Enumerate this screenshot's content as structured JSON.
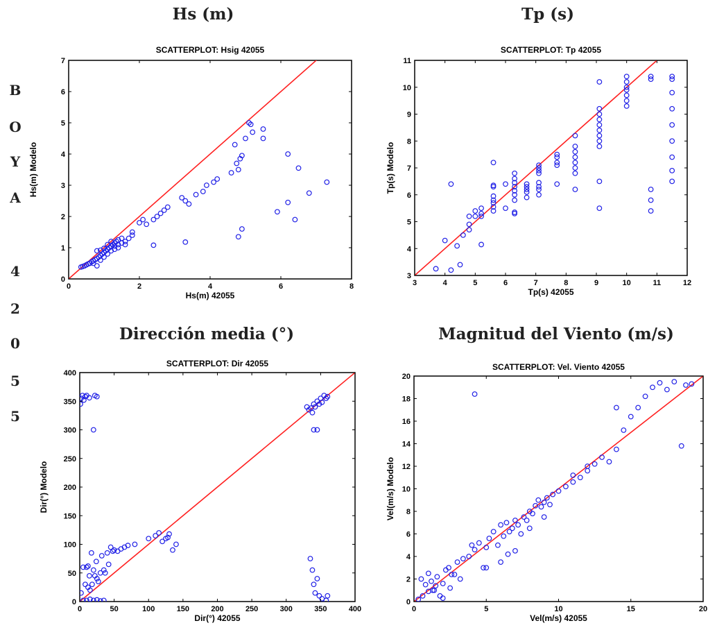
{
  "side_label": [
    "B",
    "O",
    "Y",
    "A",
    "",
    "4",
    "2",
    "0",
    "5",
    "5"
  ],
  "colors": {
    "points": "#1f1fe6",
    "fit_line": "#ff2020",
    "axes": "#000000"
  },
  "chart_data": [
    {
      "type": "scatter",
      "section_title": "Hs (m)",
      "title": "SCATTERPLOT: Hsig 42055",
      "xlabel": "Hs(m) 42055",
      "ylabel": "Hs(m) Modelo",
      "xlim": [
        0,
        8
      ],
      "ylim": [
        0,
        7
      ],
      "xticks": [
        0,
        2,
        4,
        6,
        8
      ],
      "yticks": [
        0,
        1,
        2,
        3,
        4,
        5,
        6,
        7
      ],
      "grid": false,
      "reference_line": [
        [
          0,
          0
        ],
        [
          8,
          8
        ]
      ],
      "points": [
        [
          0.35,
          0.38
        ],
        [
          0.4,
          0.4
        ],
        [
          0.45,
          0.42
        ],
        [
          0.5,
          0.45
        ],
        [
          0.55,
          0.48
        ],
        [
          0.6,
          0.5
        ],
        [
          0.65,
          0.55
        ],
        [
          0.7,
          0.58
        ],
        [
          0.75,
          0.62
        ],
        [
          0.8,
          0.65
        ],
        [
          0.85,
          0.7
        ],
        [
          0.9,
          0.75
        ],
        [
          0.95,
          0.8
        ],
        [
          1.0,
          0.85
        ],
        [
          1.05,
          0.9
        ],
        [
          1.1,
          0.95
        ],
        [
          1.15,
          1.0
        ],
        [
          1.2,
          1.05
        ],
        [
          1.25,
          1.1
        ],
        [
          1.3,
          1.15
        ],
        [
          1.35,
          1.2
        ],
        [
          1.4,
          1.25
        ],
        [
          1.5,
          1.3
        ],
        [
          0.8,
          0.9
        ],
        [
          0.9,
          0.92
        ],
        [
          1.0,
          0.98
        ],
        [
          1.1,
          1.1
        ],
        [
          1.2,
          1.2
        ],
        [
          1.3,
          1.05
        ],
        [
          1.4,
          1.1
        ],
        [
          1.5,
          1.15
        ],
        [
          1.6,
          1.2
        ],
        [
          1.7,
          1.3
        ],
        [
          1.8,
          1.5
        ],
        [
          2.0,
          1.8
        ],
        [
          2.1,
          1.9
        ],
        [
          2.2,
          1.75
        ],
        [
          2.4,
          1.9
        ],
        [
          2.5,
          2.0
        ],
        [
          2.6,
          2.1
        ],
        [
          2.7,
          2.2
        ],
        [
          2.8,
          2.3
        ],
        [
          0.7,
          0.5
        ],
        [
          0.8,
          0.42
        ],
        [
          0.9,
          0.6
        ],
        [
          1.0,
          0.7
        ],
        [
          1.1,
          0.8
        ],
        [
          1.2,
          0.9
        ],
        [
          1.3,
          0.95
        ],
        [
          1.4,
          1.0
        ],
        [
          1.6,
          1.1
        ],
        [
          1.8,
          1.4
        ],
        [
          2.4,
          1.08
        ],
        [
          3.2,
          2.6
        ],
        [
          3.3,
          2.5
        ],
        [
          3.4,
          2.4
        ],
        [
          3.6,
          2.7
        ],
        [
          3.8,
          2.8
        ],
        [
          3.9,
          3.0
        ],
        [
          4.1,
          3.1
        ],
        [
          4.2,
          3.2
        ],
        [
          4.6,
          3.4
        ],
        [
          4.7,
          4.3
        ],
        [
          4.75,
          3.7
        ],
        [
          4.8,
          3.5
        ],
        [
          4.85,
          3.85
        ],
        [
          4.9,
          3.95
        ],
        [
          5.0,
          4.5
        ],
        [
          5.1,
          5.0
        ],
        [
          5.15,
          4.95
        ],
        [
          5.2,
          4.7
        ],
        [
          5.5,
          4.8
        ],
        [
          5.5,
          4.5
        ],
        [
          4.8,
          1.35
        ],
        [
          4.9,
          1.6
        ],
        [
          3.3,
          1.18
        ],
        [
          5.9,
          2.15
        ],
        [
          6.2,
          4.0
        ],
        [
          6.2,
          2.45
        ],
        [
          6.4,
          1.9
        ],
        [
          6.5,
          3.55
        ],
        [
          6.8,
          2.75
        ],
        [
          7.3,
          3.1
        ]
      ]
    },
    {
      "type": "scatter",
      "section_title": "Tp  (s)",
      "title": "SCATTERPLOT: Tp 42055",
      "xlabel": "Tp(s) 42055",
      "ylabel": "Tp(s) Modelo",
      "xlim": [
        3,
        12
      ],
      "ylim": [
        3,
        11
      ],
      "xticks": [
        3,
        4,
        5,
        6,
        7,
        8,
        9,
        10,
        11,
        12
      ],
      "yticks": [
        3,
        4,
        5,
        6,
        7,
        8,
        9,
        10,
        11
      ],
      "grid": false,
      "reference_line": [
        [
          3,
          3
        ],
        [
          11,
          11
        ]
      ],
      "points": [
        [
          3.7,
          3.25
        ],
        [
          4.0,
          4.3
        ],
        [
          4.2,
          6.4
        ],
        [
          4.2,
          3.2
        ],
        [
          4.4,
          4.1
        ],
        [
          4.5,
          3.4
        ],
        [
          4.6,
          4.5
        ],
        [
          4.8,
          5.2
        ],
        [
          4.8,
          4.9
        ],
        [
          4.8,
          4.7
        ],
        [
          5.0,
          5.2
        ],
        [
          5.0,
          5.4
        ],
        [
          5.2,
          5.3
        ],
        [
          5.2,
          5.5
        ],
        [
          5.2,
          4.15
        ],
        [
          5.2,
          5.2
        ],
        [
          5.6,
          5.4
        ],
        [
          5.6,
          5.55
        ],
        [
          5.6,
          5.7
        ],
        [
          5.6,
          5.8
        ],
        [
          5.6,
          5.95
        ],
        [
          5.6,
          6.3
        ],
        [
          5.6,
          6.35
        ],
        [
          5.6,
          7.2
        ],
        [
          6.0,
          5.5
        ],
        [
          6.0,
          6.4
        ],
        [
          6.3,
          5.3
        ],
        [
          6.3,
          5.35
        ],
        [
          6.3,
          5.8
        ],
        [
          6.3,
          6.0
        ],
        [
          6.3,
          6.15
        ],
        [
          6.3,
          6.3
        ],
        [
          6.3,
          6.45
        ],
        [
          6.3,
          6.6
        ],
        [
          6.3,
          6.8
        ],
        [
          6.7,
          5.9
        ],
        [
          6.7,
          6.1
        ],
        [
          6.7,
          6.2
        ],
        [
          6.7,
          6.3
        ],
        [
          6.7,
          6.4
        ],
        [
          7.1,
          6.0
        ],
        [
          7.1,
          6.2
        ],
        [
          7.1,
          6.3
        ],
        [
          7.1,
          6.45
        ],
        [
          7.1,
          6.8
        ],
        [
          7.1,
          6.9
        ],
        [
          7.1,
          7.0
        ],
        [
          7.1,
          7.1
        ],
        [
          7.7,
          6.4
        ],
        [
          7.7,
          7.1
        ],
        [
          7.7,
          7.2
        ],
        [
          7.7,
          7.4
        ],
        [
          7.7,
          7.5
        ],
        [
          8.3,
          6.2
        ],
        [
          8.3,
          6.8
        ],
        [
          8.3,
          7.0
        ],
        [
          8.3,
          7.2
        ],
        [
          8.3,
          7.4
        ],
        [
          8.3,
          7.6
        ],
        [
          8.3,
          7.8
        ],
        [
          8.3,
          8.2
        ],
        [
          9.1,
          5.5
        ],
        [
          9.1,
          6.5
        ],
        [
          9.1,
          7.8
        ],
        [
          9.1,
          8.0
        ],
        [
          9.1,
          8.2
        ],
        [
          9.1,
          8.4
        ],
        [
          9.1,
          8.6
        ],
        [
          9.1,
          8.8
        ],
        [
          9.1,
          9.0
        ],
        [
          9.1,
          9.2
        ],
        [
          9.1,
          10.2
        ],
        [
          10.0,
          9.3
        ],
        [
          10.0,
          9.5
        ],
        [
          10.0,
          9.7
        ],
        [
          10.0,
          9.9
        ],
        [
          10.0,
          10.0
        ],
        [
          10.0,
          10.2
        ],
        [
          10.0,
          10.4
        ],
        [
          10.8,
          5.4
        ],
        [
          10.8,
          5.8
        ],
        [
          10.8,
          6.2
        ],
        [
          10.8,
          10.3
        ],
        [
          10.8,
          10.4
        ],
        [
          11.5,
          6.5
        ],
        [
          11.5,
          6.9
        ],
        [
          11.5,
          7.4
        ],
        [
          11.5,
          8.0
        ],
        [
          11.5,
          8.6
        ],
        [
          11.5,
          9.2
        ],
        [
          11.5,
          9.8
        ],
        [
          11.5,
          10.3
        ],
        [
          11.5,
          10.4
        ]
      ]
    },
    {
      "type": "scatter",
      "section_title": "Dirección media (°)",
      "title": "SCATTERPLOT: Dir 42055",
      "xlabel": "Dir(°) 42055",
      "ylabel": "Dir(°) Modelo",
      "xlim": [
        0,
        400
      ],
      "ylim": [
        0,
        400
      ],
      "xticks": [
        0,
        50,
        100,
        150,
        200,
        250,
        300,
        350,
        400
      ],
      "yticks": [
        0,
        50,
        100,
        150,
        200,
        250,
        300,
        350,
        400
      ],
      "grid": false,
      "reference_line": [
        [
          0,
          0
        ],
        [
          400,
          400
        ]
      ],
      "points": [
        [
          2,
          355
        ],
        [
          4,
          360
        ],
        [
          6,
          352
        ],
        [
          8,
          358
        ],
        [
          10,
          360
        ],
        [
          14,
          356
        ],
        [
          20,
          300
        ],
        [
          22,
          360
        ],
        [
          25,
          358
        ],
        [
          1,
          345
        ],
        [
          2,
          15
        ],
        [
          5,
          2
        ],
        [
          8,
          30
        ],
        [
          10,
          60
        ],
        [
          12,
          25
        ],
        [
          14,
          45
        ],
        [
          15,
          20
        ],
        [
          17,
          85
        ],
        [
          18,
          30
        ],
        [
          20,
          55
        ],
        [
          22,
          45
        ],
        [
          24,
          70
        ],
        [
          25,
          40
        ],
        [
          27,
          35
        ],
        [
          30,
          50
        ],
        [
          32,
          80
        ],
        [
          35,
          55
        ],
        [
          37,
          50
        ],
        [
          40,
          85
        ],
        [
          42,
          65
        ],
        [
          45,
          95
        ],
        [
          48,
          88
        ],
        [
          50,
          90
        ],
        [
          55,
          88
        ],
        [
          60,
          92
        ],
        [
          65,
          95
        ],
        [
          70,
          98
        ],
        [
          80,
          100
        ],
        [
          100,
          110
        ],
        [
          110,
          115
        ],
        [
          115,
          120
        ],
        [
          120,
          105
        ],
        [
          125,
          110
        ],
        [
          128,
          112
        ],
        [
          130,
          118
        ],
        [
          135,
          90
        ],
        [
          140,
          100
        ],
        [
          5,
          60
        ],
        [
          12,
          62
        ],
        [
          10,
          2
        ],
        [
          15,
          4
        ],
        [
          20,
          2
        ],
        [
          25,
          3
        ],
        [
          30,
          1
        ],
        [
          35,
          2
        ],
        [
          330,
          340
        ],
        [
          333,
          335
        ],
        [
          336,
          338
        ],
        [
          338,
          330
        ],
        [
          340,
          345
        ],
        [
          342,
          340
        ],
        [
          345,
          350
        ],
        [
          348,
          345
        ],
        [
          350,
          355
        ],
        [
          352,
          348
        ],
        [
          355,
          360
        ],
        [
          358,
          355
        ],
        [
          360,
          358
        ],
        [
          340,
          300
        ],
        [
          345,
          300
        ],
        [
          335,
          75
        ],
        [
          338,
          55
        ],
        [
          340,
          30
        ],
        [
          342,
          15
        ],
        [
          345,
          40
        ],
        [
          348,
          10
        ],
        [
          352,
          5
        ],
        [
          358,
          2
        ],
        [
          360,
          10
        ]
      ]
    },
    {
      "type": "scatter",
      "section_title": "Magnitud del Viento (m/s)",
      "title": "SCATTERPLOT: Vel. Viento 42055",
      "xlabel": "Vel(m/s) 42055",
      "ylabel": "Vel(m/s) Modelo",
      "xlim": [
        0,
        20
      ],
      "ylim": [
        0,
        20
      ],
      "xticks": [
        0,
        5,
        10,
        15,
        20
      ],
      "yticks": [
        0,
        2,
        4,
        6,
        8,
        10,
        12,
        14,
        16,
        18,
        20
      ],
      "grid": false,
      "reference_line": [
        [
          0,
          0
        ],
        [
          20,
          20
        ]
      ],
      "points": [
        [
          0.3,
          0.2
        ],
        [
          0.5,
          2.0
        ],
        [
          0.8,
          1.5
        ],
        [
          1.0,
          2.5
        ],
        [
          1.2,
          1.8
        ],
        [
          1.4,
          1.0
        ],
        [
          1.6,
          2.2
        ],
        [
          1.8,
          0.5
        ],
        [
          2.0,
          1.6
        ],
        [
          2.2,
          2.8
        ],
        [
          2.4,
          3.0
        ],
        [
          2.6,
          2.4
        ],
        [
          3.0,
          3.5
        ],
        [
          3.4,
          3.8
        ],
        [
          3.8,
          4.0
        ],
        [
          4.0,
          5.0
        ],
        [
          4.2,
          4.6
        ],
        [
          4.5,
          5.2
        ],
        [
          4.8,
          3.0
        ],
        [
          5.0,
          4.8
        ],
        [
          5.2,
          5.6
        ],
        [
          5.5,
          6.2
        ],
        [
          5.8,
          5.0
        ],
        [
          6.0,
          6.8
        ],
        [
          6.2,
          5.8
        ],
        [
          6.4,
          7.0
        ],
        [
          6.6,
          6.2
        ],
        [
          6.8,
          6.5
        ],
        [
          7.0,
          7.2
        ],
        [
          7.2,
          6.8
        ],
        [
          7.4,
          6.0
        ],
        [
          7.6,
          7.5
        ],
        [
          7.8,
          7.2
        ],
        [
          8.0,
          8.0
        ],
        [
          8.2,
          7.8
        ],
        [
          8.4,
          8.5
        ],
        [
          8.6,
          9.0
        ],
        [
          8.8,
          8.4
        ],
        [
          9.0,
          8.8
        ],
        [
          9.2,
          9.2
        ],
        [
          9.4,
          8.6
        ],
        [
          9.6,
          9.5
        ],
        [
          10.0,
          9.8
        ],
        [
          10.5,
          10.2
        ],
        [
          11.0,
          10.6
        ],
        [
          11.5,
          11.0
        ],
        [
          12.0,
          11.6
        ],
        [
          12.5,
          12.2
        ],
        [
          13.0,
          12.8
        ],
        [
          13.5,
          12.4
        ],
        [
          14.0,
          13.5
        ],
        [
          14.5,
          15.2
        ],
        [
          15.0,
          16.4
        ],
        [
          15.5,
          17.2
        ],
        [
          16.0,
          18.2
        ],
        [
          16.5,
          19.0
        ],
        [
          17.0,
          19.4
        ],
        [
          17.5,
          18.8
        ],
        [
          18.0,
          19.5
        ],
        [
          18.5,
          13.8
        ],
        [
          18.8,
          19.2
        ],
        [
          19.2,
          19.3
        ],
        [
          4.2,
          18.4
        ],
        [
          14.0,
          17.2
        ],
        [
          2.0,
          0.3
        ],
        [
          2.5,
          1.2
        ],
        [
          3.2,
          2.0
        ],
        [
          1.0,
          0.9
        ],
        [
          1.5,
          1.4
        ],
        [
          6.5,
          4.2
        ],
        [
          7.0,
          4.5
        ],
        [
          8.0,
          6.5
        ],
        [
          9.0,
          7.5
        ],
        [
          5.0,
          3.0
        ],
        [
          6.0,
          3.5
        ],
        [
          12.0,
          12.0
        ],
        [
          11.0,
          11.2
        ],
        [
          0.6,
          0.5
        ],
        [
          1.3,
          1.0
        ],
        [
          2.8,
          2.4
        ]
      ]
    }
  ]
}
